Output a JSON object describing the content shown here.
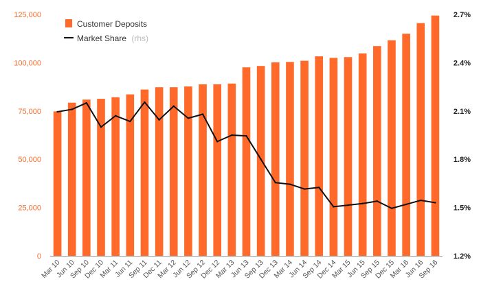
{
  "colors": {
    "bars": "#ff6a2b",
    "line": "#111111",
    "left_axis_ticks": "#f26c2d",
    "right_axis_ticks": "#222222",
    "axis_line": "#999999"
  },
  "legend": {
    "deposits_label": "Customer Deposits",
    "share_label": "Market Share",
    "share_suffix": "(rhs)"
  },
  "chart_data": {
    "type": "bar",
    "title": "",
    "xlabel": "",
    "ylabel": "",
    "grid": false,
    "legend_position": "top-left",
    "categories": [
      "Mar 10",
      "Jun 10",
      "Sep 10",
      "Dec 10",
      "Mar 11",
      "Jun 11",
      "Sep 11",
      "Dec 11",
      "Mar 12",
      "Jun 12",
      "Sep 12",
      "Dec 12",
      "Mar 13",
      "Jun 13",
      "Sep 13",
      "Dec 13",
      "Mar 14",
      "Jun 14",
      "Sep 14",
      "Dec 14",
      "Mar 15",
      "Jun 15",
      "Sep 15",
      "Dec 15",
      "Mar 16",
      "Jun 16",
      "Sep 16"
    ],
    "series": [
      {
        "name": "Customer Deposits",
        "type": "bar",
        "axis": "left",
        "values": [
          74800,
          79300,
          80900,
          81300,
          82100,
          83600,
          86100,
          87300,
          87300,
          87700,
          88800,
          88800,
          89200,
          97600,
          98300,
          100200,
          100400,
          101000,
          103300,
          102500,
          102900,
          104800,
          108600,
          111600,
          115000,
          120500,
          124400
        ]
      },
      {
        "name": "Market Share",
        "type": "line",
        "axis": "right",
        "values": [
          2.095,
          2.11,
          2.15,
          2.0,
          2.07,
          2.035,
          2.155,
          2.045,
          2.13,
          2.055,
          2.08,
          1.91,
          1.95,
          1.945,
          1.8,
          1.655,
          1.645,
          1.615,
          1.625,
          1.505,
          1.515,
          1.525,
          1.54,
          1.495,
          1.52,
          1.545,
          1.53
        ]
      }
    ],
    "y_left": {
      "ylim": [
        0,
        125000
      ],
      "ticks": [
        "0",
        "25,000",
        "50,000",
        "75,000",
        "100,000",
        "125,000"
      ]
    },
    "y_right": {
      "ylim": [
        1.2,
        2.7
      ],
      "ticks": [
        "1.2%",
        "1.5%",
        "1.8%",
        "2.1%",
        "2.4%",
        "2.7%"
      ]
    }
  }
}
